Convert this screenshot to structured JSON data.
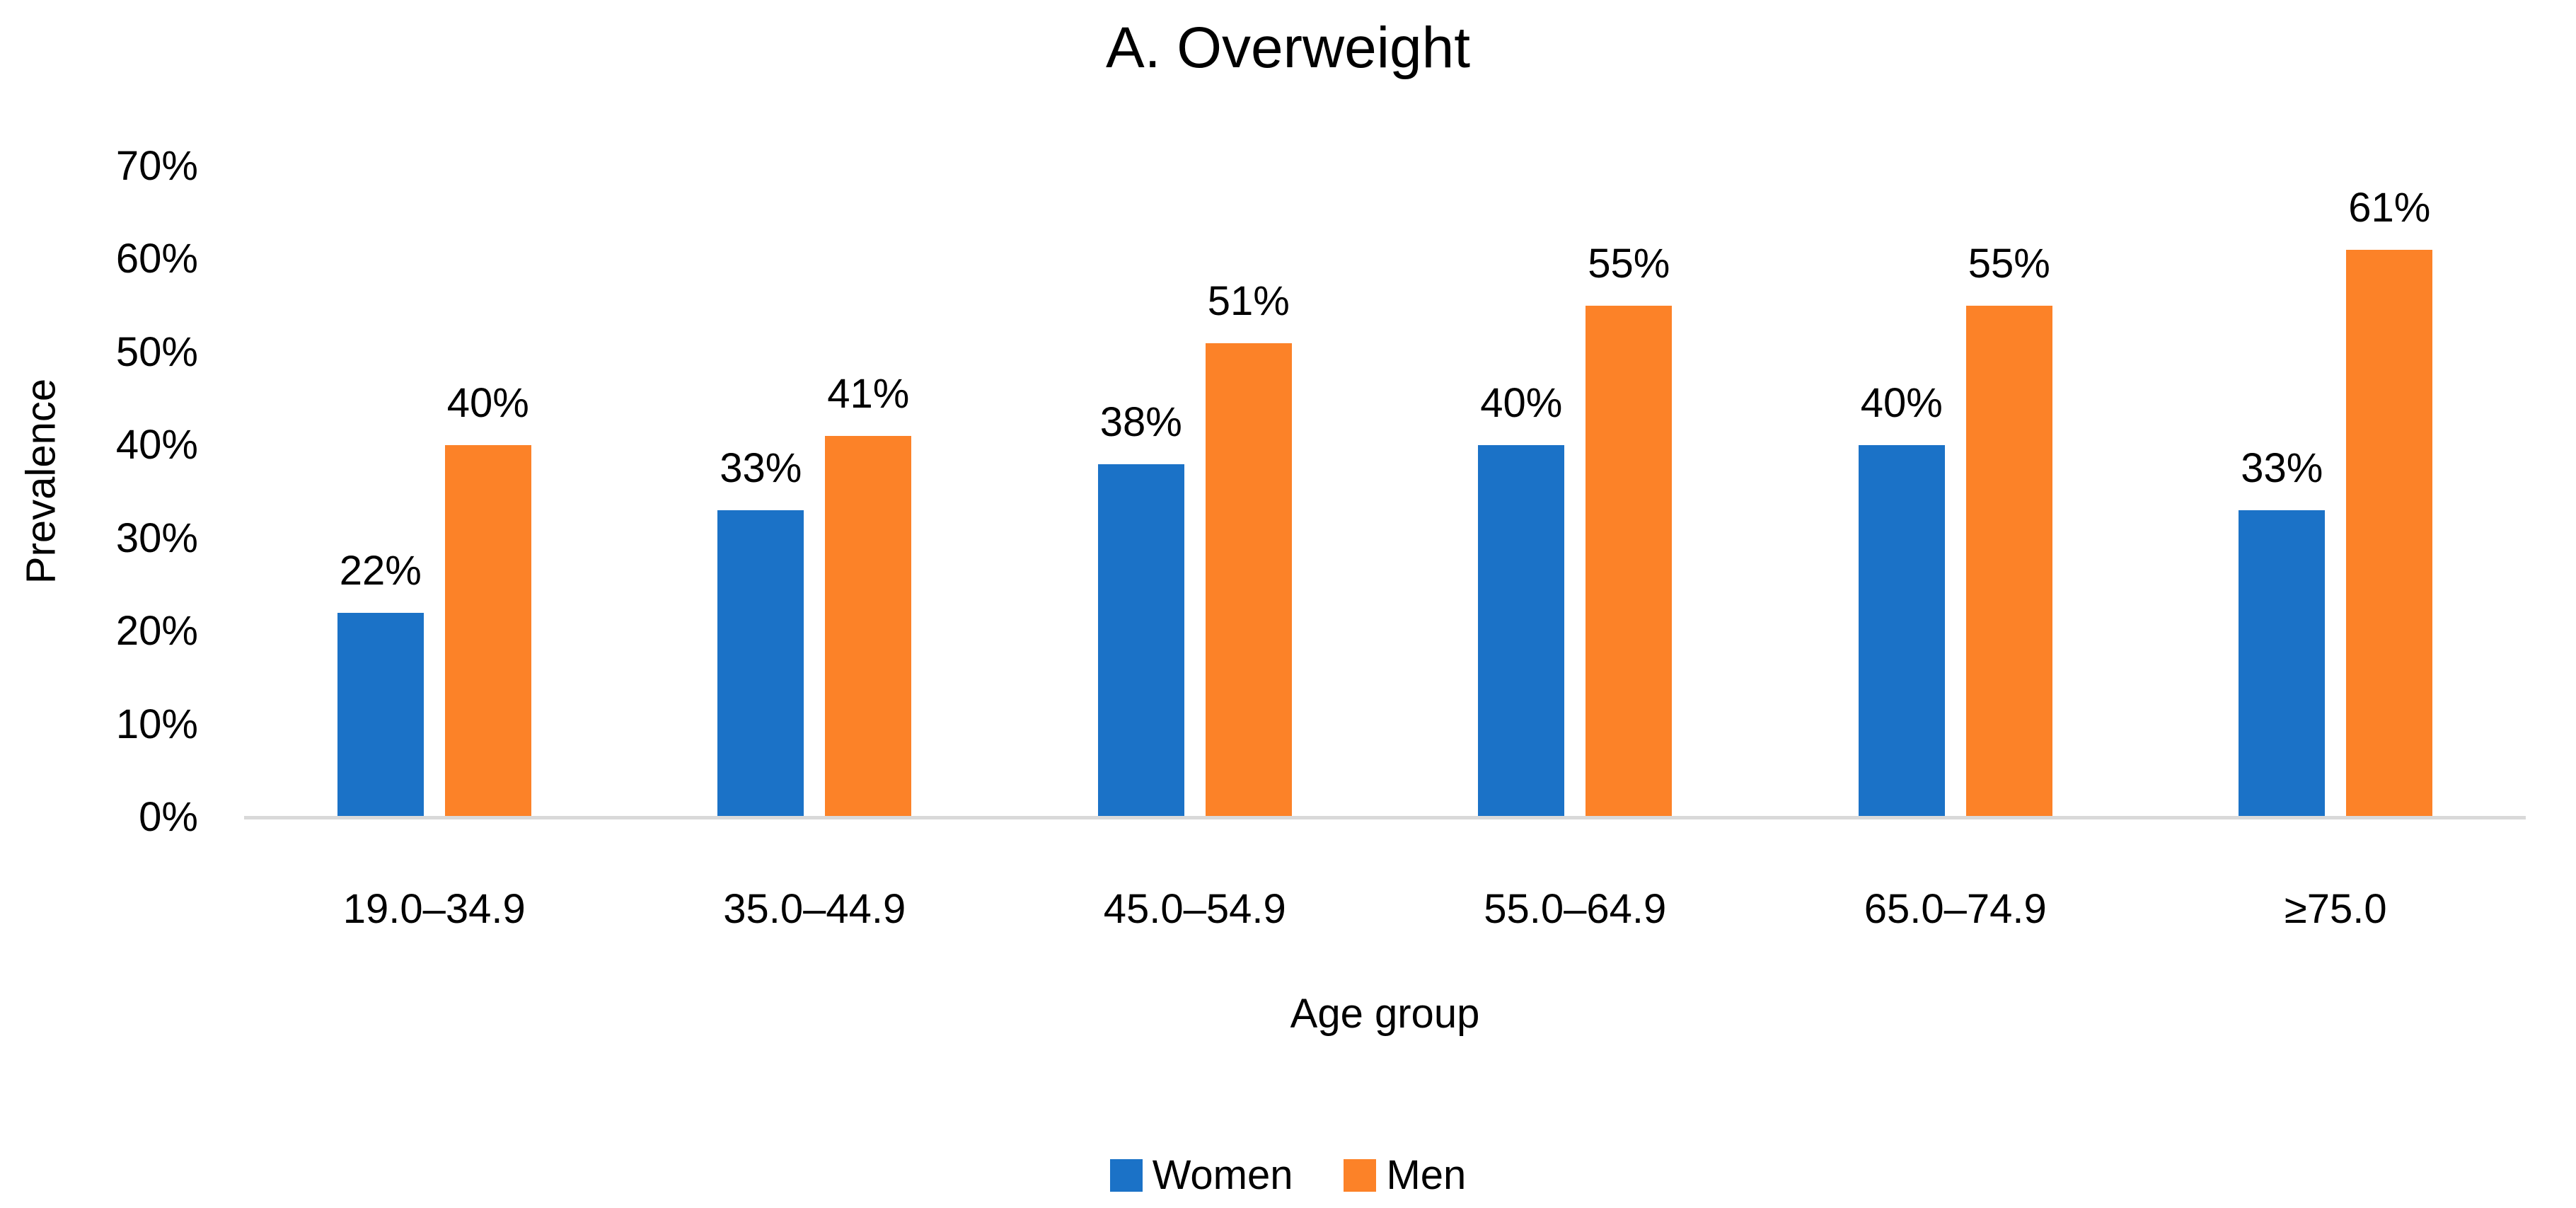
{
  "title": "A. Overweight",
  "chart_data": {
    "type": "bar",
    "title": "A. Overweight",
    "categories": [
      "19.0–34.9",
      "35.0–44.9",
      "45.0–54.9",
      "55.0–64.9",
      "65.0–74.9",
      "≥75.0"
    ],
    "series": [
      {
        "name": "Women",
        "color": "#1B72C7",
        "values": [
          22,
          33,
          38,
          40,
          40,
          33
        ],
        "labels": [
          "22%",
          "33%",
          "38%",
          "40%",
          "40%",
          "33%"
        ]
      },
      {
        "name": "Men",
        "color": "#FC8228",
        "values": [
          40,
          41,
          51,
          55,
          55,
          61
        ],
        "labels": [
          "40%",
          "41%",
          "51%",
          "55%",
          "55%",
          "61%"
        ]
      }
    ],
    "xlabel": "Age group",
    "ylabel": "Prevalence",
    "ylim": [
      0,
      70
    ],
    "ytick_step": 10,
    "ytick_labels": [
      "0%",
      "10%",
      "20%",
      "30%",
      "40%",
      "50%",
      "60%",
      "70%"
    ],
    "grid": false,
    "legend_position": "bottom",
    "axis_line_color": "#D9D9D9",
    "text_color": "#000000",
    "background": "#FFFFFF"
  }
}
